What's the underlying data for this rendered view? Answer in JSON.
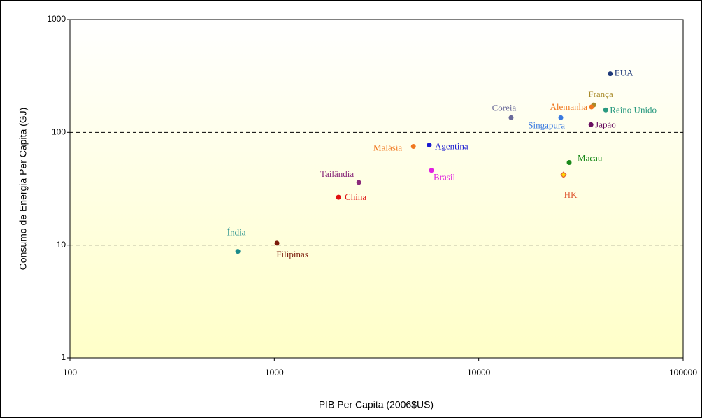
{
  "chart_data": {
    "type": "scatter",
    "x_label": "PIB Per Capita (2006$US)",
    "y_label": "Consumo de Energia Per Capita (GJ)",
    "xlog": true,
    "ylog": true,
    "grid": true,
    "xlim": [
      100,
      100000
    ],
    "xticks": [
      100,
      1000,
      10000,
      100000
    ],
    "ylim": [
      1,
      1000
    ],
    "yticks": [
      1,
      10,
      100,
      1000
    ],
    "series": [
      {
        "name": "EUA",
        "color": "#1f3a7a",
        "x": [
          44000
        ],
        "values": [
          330
        ]
      },
      {
        "name": "França",
        "color": "#a88a28",
        "x": [
          36500
        ],
        "values": [
          175
        ]
      },
      {
        "name": "Alemanha",
        "color": "#f07820",
        "x": [
          35600
        ],
        "values": [
          168
        ]
      },
      {
        "name": "Reino Unido",
        "color": "#2a9a80",
        "x": [
          41800
        ],
        "values": [
          158
        ]
      },
      {
        "name": "Japão",
        "color": "#6a1060",
        "x": [
          35400
        ],
        "values": [
          117
        ]
      },
      {
        "name": "Singapura",
        "color": "#3a7ae0",
        "x": [
          25200
        ],
        "values": [
          135
        ]
      },
      {
        "name": "Coreia",
        "color": "#6a6a9a",
        "x": [
          14400
        ],
        "values": [
          135
        ]
      },
      {
        "name": "Macau",
        "color": "#1a8a1a",
        "x": [
          27700
        ],
        "values": [
          54
        ]
      },
      {
        "name": "HK",
        "color": "#e0603a",
        "marker": "diamond",
        "x": [
          26000
        ],
        "values": [
          42
        ]
      },
      {
        "name": "Malásia",
        "color": "#f07820",
        "x": [
          4790
        ],
        "values": [
          75
        ]
      },
      {
        "name": "Agentina",
        "color": "#1a1ad0",
        "x": [
          5730
        ],
        "values": [
          77
        ]
      },
      {
        "name": "Brasil",
        "color": "#e020e0",
        "x": [
          5870
        ],
        "values": [
          46
        ]
      },
      {
        "name": "Tailândia",
        "color": "#8a2a7a",
        "x": [
          2590
        ],
        "values": [
          36
        ]
      },
      {
        "name": "China",
        "color": "#e01010",
        "x": [
          2060
        ],
        "values": [
          26.6
        ]
      },
      {
        "name": "Índia",
        "color": "#1a8a8a",
        "x": [
          663
        ],
        "values": [
          8.8
        ]
      },
      {
        "name": "Filipinas",
        "color": "#7a1a0a",
        "x": [
          1030
        ],
        "values": [
          10.4
        ]
      }
    ]
  }
}
